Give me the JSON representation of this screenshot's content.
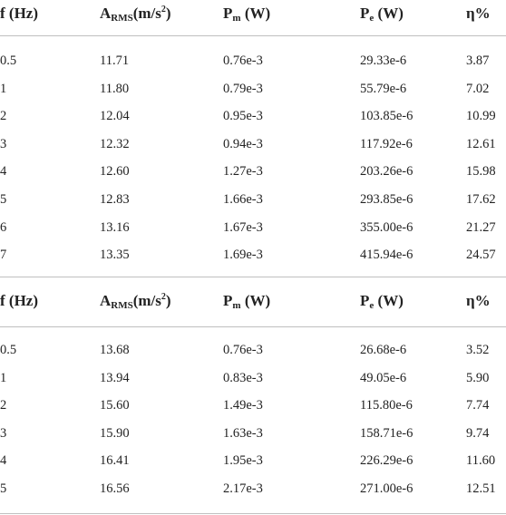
{
  "headers": {
    "f": "f (Hz)",
    "arms_main": "A",
    "arms_sub": "RMS",
    "arms_unit_a": "(m/s",
    "arms_unit_sup": "2",
    "arms_unit_b": ")",
    "pm_main": "P",
    "pm_sub": "m",
    "pm_unit": " (W)",
    "pe_main": "P",
    "pe_sub": "e",
    "pe_unit": " (W)",
    "eta": "η%"
  },
  "table1": [
    [
      "0.5",
      "11.71",
      "0.76e-3",
      "29.33e-6",
      "3.87"
    ],
    [
      "1",
      "11.80",
      "0.79e-3",
      "55.79e-6",
      "7.02"
    ],
    [
      "2",
      "12.04",
      "0.95e-3",
      "103.85e-6",
      "10.99"
    ],
    [
      "3",
      "12.32",
      "0.94e-3",
      "117.92e-6",
      "12.61"
    ],
    [
      "4",
      "12.60",
      "1.27e-3",
      "203.26e-6",
      "15.98"
    ],
    [
      "5",
      "12.83",
      "1.66e-3",
      "293.85e-6",
      "17.62"
    ],
    [
      "6",
      "13.16",
      "1.67e-3",
      "355.00e-6",
      "21.27"
    ],
    [
      "7",
      "13.35",
      "1.69e-3",
      "415.94e-6",
      "24.57"
    ]
  ],
  "table2": [
    [
      "0.5",
      "13.68",
      "0.76e-3",
      "26.68e-6",
      "3.52"
    ],
    [
      "1",
      "13.94",
      "0.83e-3",
      "49.05e-6",
      "5.90"
    ],
    [
      "2",
      "15.60",
      "1.49e-3",
      "115.80e-6",
      "7.74"
    ],
    [
      "3",
      "15.90",
      "1.63e-3",
      "158.71e-6",
      "9.74"
    ],
    [
      "4",
      "16.41",
      "1.95e-3",
      "226.29e-6",
      "11.60"
    ],
    [
      "5",
      "16.56",
      "2.17e-3",
      "271.00e-6",
      "12.51"
    ]
  ]
}
